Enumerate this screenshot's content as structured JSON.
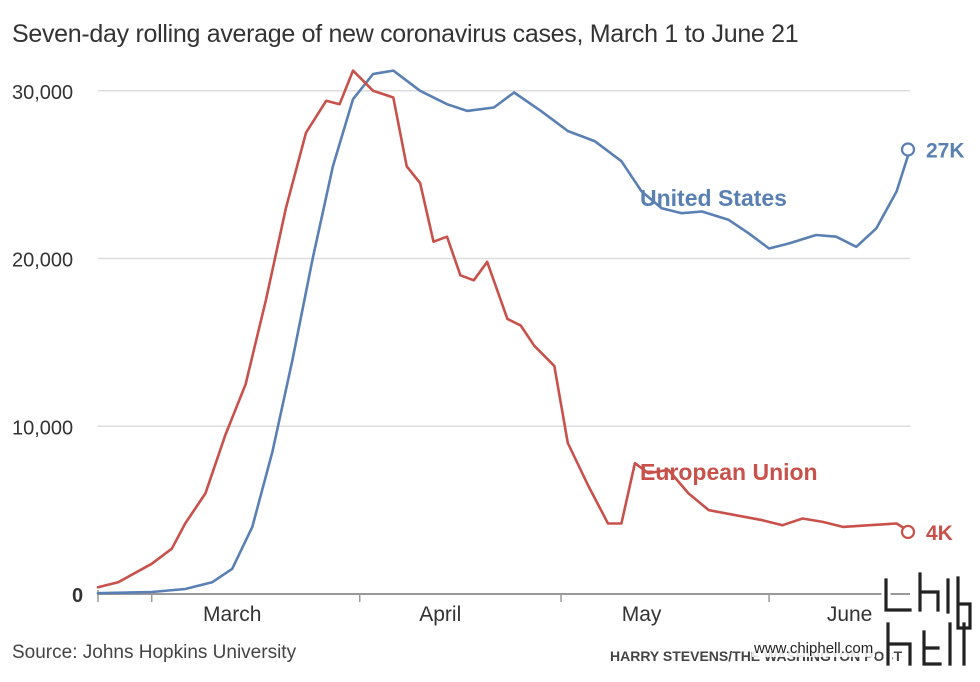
{
  "title": "Seven-day rolling average of new coronavirus cases, March 1 to June 21",
  "source": "Source: Johns Hopkins University",
  "credit": "HARRY STEVENS/THE WASHINGTON POST",
  "watermark": "www.chiphell.com",
  "colors": {
    "us": "#5a80b3",
    "eu": "#c8514b",
    "grid": "#dddddd",
    "axis": "#999999",
    "text": "#333333"
  },
  "chart_data": {
    "type": "line",
    "title": "Seven-day rolling average of new coronavirus cases, March 1 to June 21",
    "x_unit": "date (2020)",
    "xlim": [
      "2020-02-22",
      "2020-06-22"
    ],
    "ylim": [
      0,
      31000
    ],
    "yticks": [
      0,
      10000,
      20000,
      30000
    ],
    "ytick_labels": [
      "0",
      "10,000",
      "20,000",
      "30,000"
    ],
    "xticks": [
      {
        "label": "March",
        "date": "2020-03-13"
      },
      {
        "label": "April",
        "date": "2020-04-13"
      },
      {
        "label": "May",
        "date": "2020-05-13"
      },
      {
        "label": "June",
        "date": "2020-06-13"
      }
    ],
    "grid": true,
    "series": [
      {
        "name": "United States",
        "end_label": "27K",
        "color": "#5a80b3",
        "points": [
          [
            "2020-02-22",
            50
          ],
          [
            "2020-03-01",
            120
          ],
          [
            "2020-03-06",
            300
          ],
          [
            "2020-03-10",
            700
          ],
          [
            "2020-03-13",
            1500
          ],
          [
            "2020-03-16",
            4000
          ],
          [
            "2020-03-19",
            8500
          ],
          [
            "2020-03-22",
            14000
          ],
          [
            "2020-03-25",
            20000
          ],
          [
            "2020-03-28",
            25500
          ],
          [
            "2020-03-31",
            29500
          ],
          [
            "2020-04-03",
            31000
          ],
          [
            "2020-04-06",
            31200
          ],
          [
            "2020-04-10",
            30000
          ],
          [
            "2020-04-14",
            29200
          ],
          [
            "2020-04-17",
            28800
          ],
          [
            "2020-04-21",
            29000
          ],
          [
            "2020-04-24",
            29900
          ],
          [
            "2020-04-28",
            28800
          ],
          [
            "2020-05-02",
            27600
          ],
          [
            "2020-05-06",
            27000
          ],
          [
            "2020-05-10",
            25800
          ],
          [
            "2020-05-13",
            24000
          ],
          [
            "2020-05-16",
            23000
          ],
          [
            "2020-05-19",
            22700
          ],
          [
            "2020-05-22",
            22800
          ],
          [
            "2020-05-26",
            22300
          ],
          [
            "2020-05-29",
            21500
          ],
          [
            "2020-06-01",
            20600
          ],
          [
            "2020-06-04",
            20900
          ],
          [
            "2020-06-08",
            21400
          ],
          [
            "2020-06-11",
            21300
          ],
          [
            "2020-06-14",
            20700
          ],
          [
            "2020-06-17",
            21800
          ],
          [
            "2020-06-20",
            24000
          ],
          [
            "2020-06-22",
            26500
          ]
        ]
      },
      {
        "name": "European Union",
        "end_label": "4K",
        "color": "#c8514b",
        "points": [
          [
            "2020-02-22",
            400
          ],
          [
            "2020-02-25",
            700
          ],
          [
            "2020-03-01",
            1800
          ],
          [
            "2020-03-04",
            2700
          ],
          [
            "2020-03-06",
            4200
          ],
          [
            "2020-03-09",
            6000
          ],
          [
            "2020-03-12",
            9500
          ],
          [
            "2020-03-15",
            12500
          ],
          [
            "2020-03-18",
            17500
          ],
          [
            "2020-03-21",
            23000
          ],
          [
            "2020-03-24",
            27500
          ],
          [
            "2020-03-27",
            29400
          ],
          [
            "2020-03-29",
            29200
          ],
          [
            "2020-03-31",
            31200
          ],
          [
            "2020-04-03",
            30000
          ],
          [
            "2020-04-06",
            29600
          ],
          [
            "2020-04-08",
            25500
          ],
          [
            "2020-04-10",
            24500
          ],
          [
            "2020-04-12",
            21000
          ],
          [
            "2020-04-14",
            21300
          ],
          [
            "2020-04-16",
            19000
          ],
          [
            "2020-04-18",
            18700
          ],
          [
            "2020-04-20",
            19800
          ],
          [
            "2020-04-23",
            16400
          ],
          [
            "2020-04-25",
            16000
          ],
          [
            "2020-04-27",
            14800
          ],
          [
            "2020-04-30",
            13600
          ],
          [
            "2020-05-02",
            9000
          ],
          [
            "2020-05-05",
            6500
          ],
          [
            "2020-05-08",
            4200
          ],
          [
            "2020-05-10",
            4200
          ],
          [
            "2020-05-12",
            7800
          ],
          [
            "2020-05-14",
            7200
          ],
          [
            "2020-05-17",
            7400
          ],
          [
            "2020-05-20",
            6000
          ],
          [
            "2020-05-23",
            5000
          ],
          [
            "2020-05-27",
            4700
          ],
          [
            "2020-05-31",
            4400
          ],
          [
            "2020-06-03",
            4100
          ],
          [
            "2020-06-06",
            4500
          ],
          [
            "2020-06-09",
            4300
          ],
          [
            "2020-06-12",
            4000
          ],
          [
            "2020-06-16",
            4100
          ],
          [
            "2020-06-20",
            4200
          ],
          [
            "2020-06-22",
            3700
          ]
        ]
      }
    ],
    "annotations": [
      {
        "text": "United States",
        "series": "United States"
      },
      {
        "text": "European Union",
        "series": "European Union"
      }
    ]
  }
}
